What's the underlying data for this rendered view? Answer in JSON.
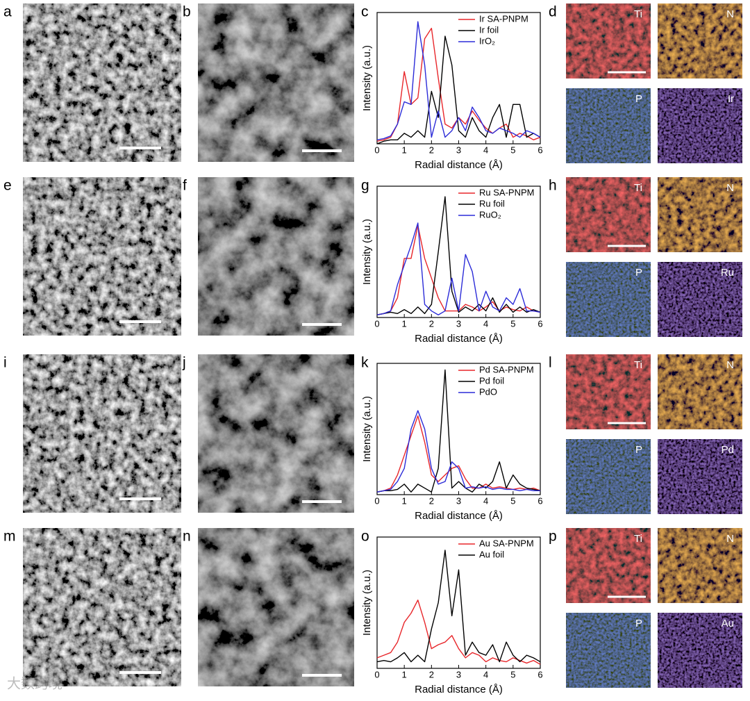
{
  "figure": {
    "rows": [
      {
        "labels": [
          "a",
          "b",
          "c",
          "d"
        ],
        "maps": [
          "Ti",
          "N",
          "P",
          "Ir"
        ]
      },
      {
        "labels": [
          "e",
          "f",
          "g",
          "h"
        ],
        "maps": [
          "Ti",
          "N",
          "P",
          "Ru"
        ]
      },
      {
        "labels": [
          "i",
          "j",
          "k",
          "l"
        ],
        "maps": [
          "Ti",
          "N",
          "P",
          "Pd"
        ]
      },
      {
        "labels": [
          "m",
          "n",
          "o",
          "p"
        ],
        "maps": [
          "Ti",
          "N",
          "P",
          "Au"
        ]
      }
    ],
    "watermark": "大数跨境"
  },
  "chart_data": [
    {
      "type": "line",
      "xlabel": "Radial distance (Å)",
      "ylabel": "Intensity (a.u.)",
      "xlim": [
        0,
        6
      ],
      "xticks": [
        0,
        1,
        2,
        3,
        4,
        5,
        6
      ],
      "ylim": [
        0,
        1
      ],
      "x": [
        0,
        0.25,
        0.5,
        0.75,
        1,
        1.25,
        1.5,
        1.75,
        2,
        2.25,
        2.5,
        2.75,
        3,
        3.25,
        3.5,
        3.75,
        4,
        4.25,
        4.5,
        4.75,
        5,
        5.25,
        5.5,
        5.75,
        6
      ],
      "series": [
        {
          "name": "Ir SA-PNPM",
          "color": "#e8262a",
          "values": [
            0.02,
            0.03,
            0.05,
            0.15,
            0.55,
            0.3,
            0.35,
            0.8,
            0.88,
            0.5,
            0.15,
            0.12,
            0.2,
            0.15,
            0.25,
            0.18,
            0.12,
            0.08,
            0.12,
            0.15,
            0.05,
            0.08,
            0.06,
            0.03,
            0.05
          ]
        },
        {
          "name": "Ir foil",
          "color": "#000000",
          "values": [
            0.0,
            0.02,
            0.03,
            0.03,
            0.08,
            0.05,
            0.1,
            0.05,
            0.4,
            0.2,
            0.82,
            0.6,
            0.1,
            0.05,
            0.2,
            0.1,
            0.05,
            0.2,
            0.3,
            0.05,
            0.3,
            0.3,
            0.05,
            0.08,
            0.05
          ]
        },
        {
          "name": "IrO₂",
          "color": "#2b2bd8",
          "values": [
            0.03,
            0.04,
            0.06,
            0.15,
            0.32,
            0.3,
            0.93,
            0.6,
            0.05,
            0.25,
            0.05,
            0.1,
            0.2,
            0.1,
            0.28,
            0.2,
            0.1,
            0.08,
            0.12,
            0.1,
            0.08,
            0.05,
            0.1,
            0.08,
            0.05
          ]
        }
      ]
    },
    {
      "type": "line",
      "xlabel": "Radial distance (Å)",
      "ylabel": "Intensity (a.u.)",
      "xlim": [
        0,
        6
      ],
      "xticks": [
        0,
        1,
        2,
        3,
        4,
        5,
        6
      ],
      "ylim": [
        0,
        1
      ],
      "x": [
        0,
        0.25,
        0.5,
        0.75,
        1,
        1.25,
        1.5,
        1.75,
        2,
        2.25,
        2.5,
        2.75,
        3,
        3.25,
        3.5,
        3.75,
        4,
        4.25,
        4.5,
        4.75,
        5,
        5.25,
        5.5,
        5.75,
        6
      ],
      "series": [
        {
          "name": "Ru SA-PNPM",
          "color": "#e8262a",
          "values": [
            0.02,
            0.03,
            0.05,
            0.15,
            0.45,
            0.45,
            0.7,
            0.45,
            0.3,
            0.15,
            0.05,
            0.05,
            0.05,
            0.1,
            0.08,
            0.05,
            0.08,
            0.12,
            0.05,
            0.08,
            0.06,
            0.05,
            0.08,
            0.05,
            0.04
          ]
        },
        {
          "name": "Ru foil",
          "color": "#000000",
          "values": [
            0.02,
            0.03,
            0.04,
            0.03,
            0.06,
            0.03,
            0.08,
            0.03,
            0.1,
            0.5,
            0.92,
            0.2,
            0.04,
            0.08,
            0.05,
            0.1,
            0.05,
            0.15,
            0.04,
            0.1,
            0.04,
            0.08,
            0.04,
            0.06,
            0.04
          ]
        },
        {
          "name": "RuO₂",
          "color": "#2b2bd8",
          "values": [
            0.02,
            0.03,
            0.05,
            0.25,
            0.4,
            0.55,
            0.72,
            0.1,
            0.05,
            0.02,
            0.05,
            0.3,
            0.05,
            0.48,
            0.35,
            0.05,
            0.2,
            0.08,
            0.05,
            0.15,
            0.1,
            0.22,
            0.05,
            0.05,
            0.04
          ]
        }
      ]
    },
    {
      "type": "line",
      "xlabel": "Radial distance (Å)",
      "ylabel": "Intensity (a.u.)",
      "xlim": [
        0,
        6
      ],
      "xticks": [
        0,
        1,
        2,
        3,
        4,
        5,
        6
      ],
      "ylim": [
        0,
        1
      ],
      "x": [
        0,
        0.25,
        0.5,
        0.75,
        1,
        1.25,
        1.5,
        1.75,
        2,
        2.25,
        2.5,
        2.75,
        3,
        3.25,
        3.5,
        3.75,
        4,
        4.25,
        4.5,
        4.75,
        5,
        5.25,
        5.5,
        5.75,
        6
      ],
      "series": [
        {
          "name": "Pd SA-PNPM",
          "color": "#e8262a",
          "values": [
            0.02,
            0.03,
            0.05,
            0.15,
            0.3,
            0.45,
            0.6,
            0.4,
            0.15,
            0.1,
            0.15,
            0.2,
            0.22,
            0.12,
            0.05,
            0.05,
            0.08,
            0.05,
            0.06,
            0.05,
            0.04,
            0.05,
            0.04,
            0.05,
            0.03
          ]
        },
        {
          "name": "Pd foil",
          "color": "#000000",
          "values": [
            0.02,
            0.03,
            0.03,
            0.04,
            0.08,
            0.02,
            0.08,
            0.05,
            0.02,
            0.2,
            0.95,
            0.05,
            0.1,
            0.05,
            0.02,
            0.08,
            0.05,
            0.1,
            0.25,
            0.05,
            0.15,
            0.08,
            0.05,
            0.04,
            0.03
          ]
        },
        {
          "name": "PdO",
          "color": "#2b2bd8",
          "values": [
            0.02,
            0.03,
            0.04,
            0.1,
            0.2,
            0.5,
            0.64,
            0.5,
            0.2,
            0.08,
            0.1,
            0.25,
            0.2,
            0.05,
            0.06,
            0.05,
            0.06,
            0.04,
            0.05,
            0.04,
            0.04,
            0.03,
            0.04,
            0.03,
            0.03
          ]
        }
      ]
    },
    {
      "type": "line",
      "xlabel": "Radial distance (Å)",
      "ylabel": "Intensity (a.u.)",
      "xlim": [
        0,
        6
      ],
      "xticks": [
        0,
        1,
        2,
        3,
        4,
        5,
        6
      ],
      "ylim": [
        0,
        1
      ],
      "x": [
        0,
        0.25,
        0.5,
        0.75,
        1,
        1.25,
        1.5,
        1.75,
        2,
        2.25,
        2.5,
        2.75,
        3,
        3.25,
        3.5,
        3.75,
        4,
        4.25,
        4.5,
        4.75,
        5,
        5.25,
        5.5,
        5.75,
        6
      ],
      "series": [
        {
          "name": "Au SA-PNPM",
          "color": "#e8262a",
          "values": [
            0.08,
            0.1,
            0.12,
            0.2,
            0.35,
            0.42,
            0.52,
            0.35,
            0.15,
            0.18,
            0.2,
            0.25,
            0.15,
            0.08,
            0.12,
            0.1,
            0.05,
            0.08,
            0.06,
            0.05,
            0.08,
            0.06,
            0.04,
            0.06,
            0.03
          ]
        },
        {
          "name": "Au foil",
          "color": "#000000",
          "values": [
            0.05,
            0.06,
            0.05,
            0.08,
            0.12,
            0.05,
            0.1,
            0.05,
            0.3,
            0.5,
            0.9,
            0.4,
            0.75,
            0.1,
            0.2,
            0.12,
            0.1,
            0.18,
            0.05,
            0.2,
            0.1,
            0.05,
            0.1,
            0.08,
            0.05
          ]
        }
      ]
    }
  ]
}
